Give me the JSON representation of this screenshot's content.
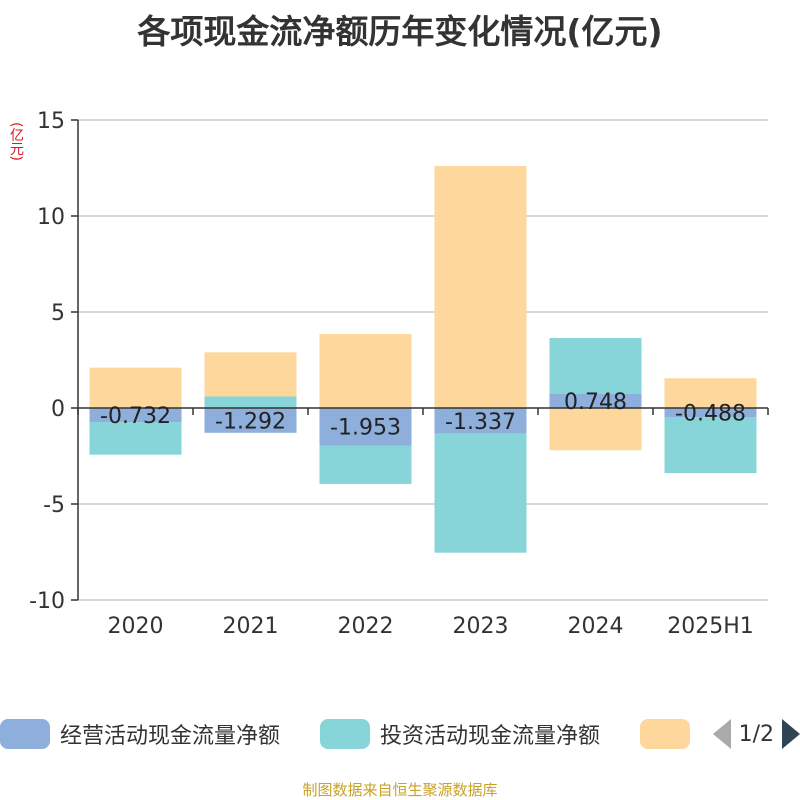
{
  "title": "各项现金流净额历年变化情况(亿元)",
  "unit_label": "(亿元)",
  "footer": "制图数据来自恒生聚源数据库",
  "legend": {
    "items": [
      {
        "label": "经营活动现金流量净额",
        "color": "#8eaedb"
      },
      {
        "label": "投资活动现金流量净额",
        "color": "#87d5d8"
      },
      {
        "label": "",
        "color": "#fdd79c"
      }
    ],
    "page": "1/2"
  },
  "chart_data": {
    "type": "bar",
    "stacked": true,
    "categories": [
      "2020",
      "2021",
      "2022",
      "2023",
      "2024",
      "2025H1"
    ],
    "ylim": [
      -10,
      15
    ],
    "yticks": [
      15,
      10,
      5,
      0,
      -5,
      -10
    ],
    "grid": true,
    "legend_position": "bottom",
    "series": [
      {
        "name": "经营活动现金流量净额",
        "color": "#8eaedb",
        "values": [
          -0.732,
          -1.292,
          -1.953,
          -1.337,
          0.748,
          -0.488
        ],
        "labels": [
          "-0.732",
          "-1.292",
          "-1.953",
          "-1.337",
          "0.748",
          "-0.488"
        ]
      },
      {
        "name": "投资活动现金流量净额",
        "color": "#87d5d8",
        "values": [
          -1.7,
          0.6,
          -2.0,
          -6.2,
          2.9,
          -2.9
        ]
      },
      {
        "color": "#fdd79c",
        "values": [
          2.1,
          2.3,
          3.85,
          12.6,
          -2.2,
          1.55
        ]
      }
    ]
  }
}
